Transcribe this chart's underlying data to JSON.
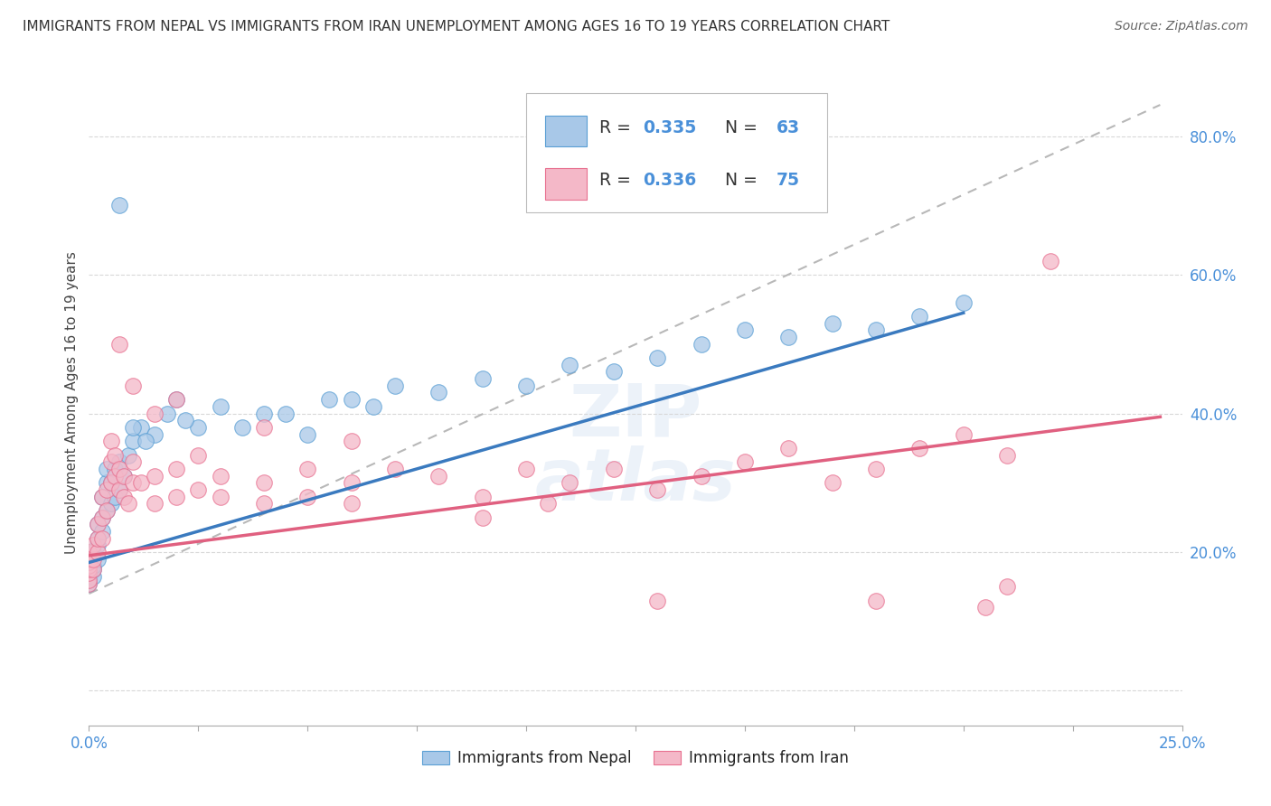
{
  "title": "IMMIGRANTS FROM NEPAL VS IMMIGRANTS FROM IRAN UNEMPLOYMENT AMONG AGES 16 TO 19 YEARS CORRELATION CHART",
  "source": "Source: ZipAtlas.com",
  "ylabel_ticks": [
    0.0,
    0.2,
    0.4,
    0.6,
    0.8
  ],
  "ylabel_labels": [
    "",
    "20.0%",
    "40.0%",
    "60.0%",
    "80.0%"
  ],
  "xlim": [
    0.0,
    0.25
  ],
  "ylim": [
    -0.05,
    0.88
  ],
  "nepal_R": 0.335,
  "nepal_N": 63,
  "iran_R": 0.336,
  "iran_N": 75,
  "nepal_color": "#a8c8e8",
  "iran_color": "#f4b8c8",
  "nepal_edge_color": "#5a9fd4",
  "iran_edge_color": "#e87090",
  "gray_line_color": "#b8b8b8",
  "legend_label_nepal": "Immigrants from Nepal",
  "legend_label_iran": "Immigrants from Iran",
  "title_color": "#333333",
  "source_color": "#666666",
  "tick_label_color": "#4a90d9",
  "nepal_line_color": "#3a7abf",
  "iran_line_color": "#e06080",
  "nepal_scatter": [
    [
      0.0,
      0.155
    ],
    [
      0.0,
      0.16
    ],
    [
      0.0,
      0.165
    ],
    [
      0.0,
      0.17
    ],
    [
      0.0,
      0.18
    ],
    [
      0.0,
      0.175
    ],
    [
      0.0,
      0.185
    ],
    [
      0.0,
      0.19
    ],
    [
      0.0,
      0.2
    ],
    [
      0.001,
      0.165
    ],
    [
      0.001,
      0.175
    ],
    [
      0.001,
      0.18
    ],
    [
      0.001,
      0.2
    ],
    [
      0.002,
      0.19
    ],
    [
      0.002,
      0.21
    ],
    [
      0.002,
      0.22
    ],
    [
      0.002,
      0.24
    ],
    [
      0.003,
      0.23
    ],
    [
      0.003,
      0.25
    ],
    [
      0.003,
      0.28
    ],
    [
      0.004,
      0.26
    ],
    [
      0.004,
      0.3
    ],
    [
      0.004,
      0.32
    ],
    [
      0.005,
      0.27
    ],
    [
      0.005,
      0.3
    ],
    [
      0.006,
      0.32
    ],
    [
      0.006,
      0.28
    ],
    [
      0.007,
      0.29
    ],
    [
      0.007,
      0.33
    ],
    [
      0.008,
      0.31
    ],
    [
      0.009,
      0.34
    ],
    [
      0.01,
      0.36
    ],
    [
      0.012,
      0.38
    ],
    [
      0.015,
      0.37
    ],
    [
      0.018,
      0.4
    ],
    [
      0.02,
      0.42
    ],
    [
      0.025,
      0.38
    ],
    [
      0.03,
      0.41
    ],
    [
      0.04,
      0.4
    ],
    [
      0.05,
      0.37
    ],
    [
      0.007,
      0.7
    ],
    [
      0.06,
      0.42
    ],
    [
      0.07,
      0.44
    ],
    [
      0.08,
      0.43
    ],
    [
      0.09,
      0.45
    ],
    [
      0.1,
      0.44
    ],
    [
      0.11,
      0.47
    ],
    [
      0.12,
      0.46
    ],
    [
      0.13,
      0.48
    ],
    [
      0.14,
      0.5
    ],
    [
      0.15,
      0.52
    ],
    [
      0.16,
      0.51
    ],
    [
      0.17,
      0.53
    ],
    [
      0.18,
      0.52
    ],
    [
      0.19,
      0.54
    ],
    [
      0.2,
      0.56
    ],
    [
      0.01,
      0.38
    ],
    [
      0.013,
      0.36
    ],
    [
      0.022,
      0.39
    ],
    [
      0.035,
      0.38
    ],
    [
      0.045,
      0.4
    ],
    [
      0.055,
      0.42
    ],
    [
      0.065,
      0.41
    ]
  ],
  "iran_scatter": [
    [
      0.0,
      0.155
    ],
    [
      0.0,
      0.16
    ],
    [
      0.0,
      0.17
    ],
    [
      0.0,
      0.175
    ],
    [
      0.0,
      0.18
    ],
    [
      0.0,
      0.185
    ],
    [
      0.0,
      0.19
    ],
    [
      0.0,
      0.2
    ],
    [
      0.001,
      0.175
    ],
    [
      0.001,
      0.19
    ],
    [
      0.001,
      0.21
    ],
    [
      0.002,
      0.2
    ],
    [
      0.002,
      0.22
    ],
    [
      0.002,
      0.24
    ],
    [
      0.003,
      0.22
    ],
    [
      0.003,
      0.25
    ],
    [
      0.003,
      0.28
    ],
    [
      0.004,
      0.26
    ],
    [
      0.004,
      0.29
    ],
    [
      0.005,
      0.3
    ],
    [
      0.005,
      0.33
    ],
    [
      0.005,
      0.36
    ],
    [
      0.006,
      0.31
    ],
    [
      0.006,
      0.34
    ],
    [
      0.007,
      0.29
    ],
    [
      0.007,
      0.32
    ],
    [
      0.008,
      0.28
    ],
    [
      0.008,
      0.31
    ],
    [
      0.009,
      0.27
    ],
    [
      0.01,
      0.3
    ],
    [
      0.01,
      0.33
    ],
    [
      0.012,
      0.3
    ],
    [
      0.015,
      0.27
    ],
    [
      0.015,
      0.31
    ],
    [
      0.02,
      0.28
    ],
    [
      0.02,
      0.32
    ],
    [
      0.025,
      0.29
    ],
    [
      0.025,
      0.34
    ],
    [
      0.03,
      0.31
    ],
    [
      0.03,
      0.28
    ],
    [
      0.04,
      0.3
    ],
    [
      0.04,
      0.27
    ],
    [
      0.05,
      0.32
    ],
    [
      0.05,
      0.28
    ],
    [
      0.06,
      0.3
    ],
    [
      0.06,
      0.27
    ],
    [
      0.07,
      0.32
    ],
    [
      0.08,
      0.31
    ],
    [
      0.09,
      0.28
    ],
    [
      0.1,
      0.32
    ],
    [
      0.105,
      0.27
    ],
    [
      0.11,
      0.3
    ],
    [
      0.12,
      0.32
    ],
    [
      0.13,
      0.29
    ],
    [
      0.14,
      0.31
    ],
    [
      0.15,
      0.33
    ],
    [
      0.16,
      0.35
    ],
    [
      0.17,
      0.3
    ],
    [
      0.18,
      0.32
    ],
    [
      0.19,
      0.35
    ],
    [
      0.2,
      0.37
    ],
    [
      0.21,
      0.34
    ],
    [
      0.22,
      0.62
    ],
    [
      0.007,
      0.5
    ],
    [
      0.01,
      0.44
    ],
    [
      0.015,
      0.4
    ],
    [
      0.02,
      0.42
    ],
    [
      0.04,
      0.38
    ],
    [
      0.06,
      0.36
    ],
    [
      0.09,
      0.25
    ],
    [
      0.13,
      0.13
    ],
    [
      0.18,
      0.13
    ],
    [
      0.205,
      0.12
    ],
    [
      0.21,
      0.15
    ]
  ],
  "nepal_line": [
    [
      0.0,
      0.185
    ],
    [
      0.2,
      0.545
    ]
  ],
  "iran_line": [
    [
      0.0,
      0.195
    ],
    [
      0.245,
      0.395
    ]
  ],
  "gray_line": [
    [
      0.0,
      0.14
    ],
    [
      0.245,
      0.845
    ]
  ],
  "background_color": "#ffffff",
  "grid_color": "#d8d8d8"
}
